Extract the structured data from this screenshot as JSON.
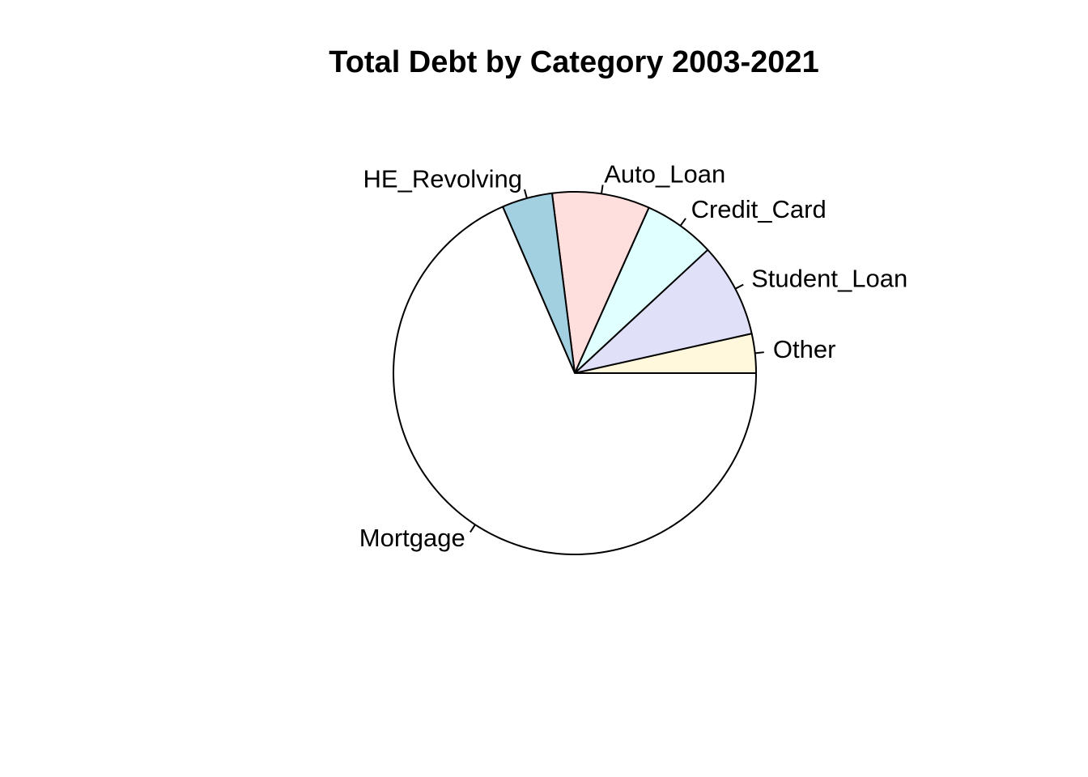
{
  "chart_data": {
    "type": "pie",
    "title": "Total Debt by Category 2003-2021",
    "slices": [
      {
        "label": "Other",
        "value": 3.5,
        "color": "#FFF8DC"
      },
      {
        "label": "Student_Loan",
        "value": 8.4,
        "color": "#E0E0F8"
      },
      {
        "label": "Credit_Card",
        "value": 6.4,
        "color": "#E0FFFF"
      },
      {
        "label": "Auto_Loan",
        "value": 8.7,
        "color": "#FFDEDE"
      },
      {
        "label": "HE_Revolving",
        "value": 4.5,
        "color": "#A2D0E0"
      },
      {
        "label": "Mortgage",
        "value": 68.5,
        "color": "#FFFFFF"
      }
    ],
    "start_angle_deg": 0,
    "direction": "counterclockwise",
    "legend": "none"
  }
}
